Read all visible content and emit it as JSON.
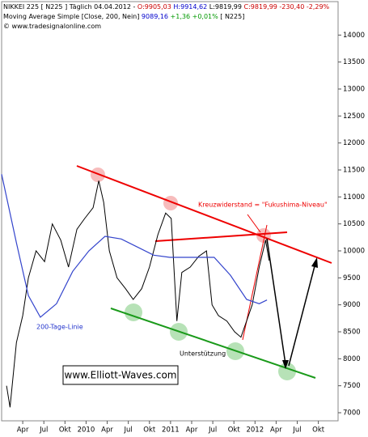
{
  "header": {
    "lines": [
      [
        {
          "text": "NIKKEI 225 [ N225 ] Täglich 04.04.2012 - ",
          "color": "#000000"
        },
        {
          "text": "O:9905,03",
          "color": "#cc0000"
        },
        {
          "text": " H:9914,62",
          "color": "#0000cc"
        },
        {
          "text": " L:9819,99 ",
          "color": "#000000"
        },
        {
          "text": "C:9819,99 -230,40 -2,29%",
          "color": "#cc0000"
        }
      ],
      [
        {
          "text": "Moving Average Simple [Close, 200, Nein] ",
          "color": "#000000"
        },
        {
          "text": "9089,16",
          "color": "#0000cc"
        },
        {
          "text": " +1,36 +0,01%",
          "color": "#009900"
        },
        {
          "text": " [ N225]",
          "color": "#000000"
        }
      ],
      [
        {
          "text": "© www.tradesignalonline.com",
          "color": "#000000"
        }
      ]
    ]
  },
  "chart_data": {
    "type": "line",
    "xlim": [
      0,
      47.8
    ],
    "ylim": [
      6850,
      14350
    ],
    "xticks": [
      {
        "value": 3,
        "label": "Apr"
      },
      {
        "value": 6,
        "label": "Jul"
      },
      {
        "value": 9,
        "label": "Okt"
      },
      {
        "value": 12,
        "label": "2010"
      },
      {
        "value": 15,
        "label": "Apr"
      },
      {
        "value": 18,
        "label": "Jul"
      },
      {
        "value": 21,
        "label": "Okt"
      },
      {
        "value": 24,
        "label": "2011"
      },
      {
        "value": 27,
        "label": "Apr"
      },
      {
        "value": 30,
        "label": "Jul"
      },
      {
        "value": 33,
        "label": "Okt"
      },
      {
        "value": 36,
        "label": "2012"
      },
      {
        "value": 39,
        "label": "Apr"
      },
      {
        "value": 42,
        "label": "Jul"
      },
      {
        "value": 45,
        "label": "Okt"
      }
    ],
    "yticks": [
      7000,
      7500,
      8000,
      8500,
      9000,
      9500,
      10000,
      10500,
      11000,
      11500,
      12000,
      12500,
      13000,
      13500,
      14000
    ],
    "series": [
      {
        "name": "NIKKEI 225",
        "color": "#000000",
        "x": [
          0.7,
          1.2,
          2.1,
          3,
          3.8,
          4.9,
          6.1,
          7.2,
          8.4,
          9.5,
          10.7,
          11.8,
          13,
          13.8,
          14.5,
          15.3,
          16.4,
          17.6,
          18.7,
          19.9,
          21,
          22.2,
          23.3,
          24.1,
          24.9,
          25.6,
          26.8,
          28,
          29.1,
          29.9,
          30.8,
          32,
          33.1,
          34,
          34.8,
          35.6,
          36.6,
          37.5,
          38
        ],
        "values": [
          7500,
          7100,
          8300,
          8800,
          9500,
          10000,
          9800,
          10500,
          10200,
          9700,
          10400,
          10600,
          10800,
          11300,
          10900,
          10000,
          9500,
          9300,
          9100,
          9300,
          9700,
          10300,
          10700,
          10600,
          8700,
          9600,
          9700,
          9900,
          10000,
          9000,
          8800,
          8700,
          8500,
          8400,
          8700,
          9000,
          9700,
          10200,
          9820
        ]
      },
      {
        "name": "200-Tage-Linie",
        "color": "#3344cc",
        "x": [
          0,
          2.1,
          3.8,
          5.5,
          7.8,
          10.1,
          12.4,
          14.7,
          17,
          19.3,
          21.6,
          23.9,
          27.4,
          30.2,
          32.5,
          34.8,
          36.6,
          37.7
        ],
        "values": [
          11420,
          10150,
          9170,
          8770,
          9020,
          9620,
          10000,
          10270,
          10220,
          10070,
          9920,
          9880,
          9880,
          9880,
          9550,
          9100,
          9020,
          9090
        ]
      }
    ],
    "annotations": {
      "resistance": "Kreuzwiderstand = \"Fukushima-Niveau\"",
      "ma": "200-Tage-Linie",
      "support": "Unterstützung",
      "site": "www.Elliott-Waves.com"
    }
  }
}
